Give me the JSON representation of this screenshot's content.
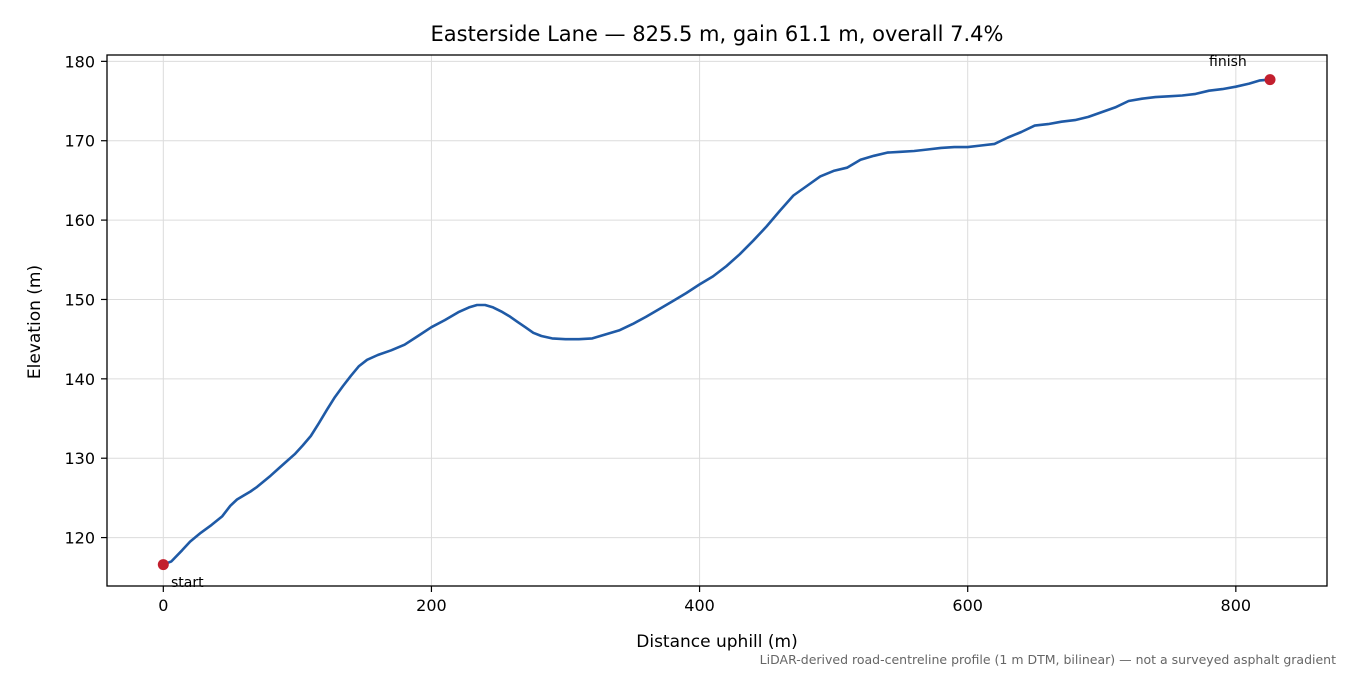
{
  "chart_data": {
    "type": "line",
    "title": "Easterside Lane — 825.5 m, gain 61.1 m, overall 7.4%",
    "xlabel": "Distance uphill (m)",
    "ylabel": "Elevation (m)",
    "xlim": [
      -42,
      868
    ],
    "ylim": [
      113.9,
      180.8
    ],
    "xticks": [
      0,
      200,
      400,
      600,
      800
    ],
    "yticks": [
      120,
      130,
      140,
      150,
      160,
      170,
      180
    ],
    "grid": true,
    "line_color": "#1f5aa6",
    "marker_color": "#c21f2e",
    "series": [
      {
        "x": [
          0,
          6,
          14,
          20,
          28,
          36,
          44,
          50,
          55,
          60,
          65,
          70,
          75,
          80,
          86,
          92,
          98,
          104,
          110,
          116,
          122,
          128,
          134,
          140,
          146,
          152,
          160,
          170,
          180,
          190,
          200,
          210,
          220,
          228,
          234,
          240,
          246,
          252,
          258,
          264,
          270,
          276,
          282,
          290,
          300,
          310,
          320,
          330,
          340,
          350,
          360,
          370,
          380,
          390,
          400,
          410,
          420,
          430,
          440,
          450,
          460,
          470,
          480,
          490,
          500,
          510,
          520,
          530,
          540,
          550,
          560,
          570,
          580,
          590,
          600,
          610,
          620,
          630,
          640,
          650,
          660,
          670,
          680,
          690,
          700,
          710,
          720,
          730,
          740,
          750,
          760,
          770,
          780,
          790,
          800,
          810,
          818,
          825.5
        ],
        "y": [
          116.6,
          117.0,
          118.4,
          119.5,
          120.6,
          121.6,
          122.7,
          124.0,
          124.8,
          125.3,
          125.8,
          126.4,
          127.1,
          127.8,
          128.7,
          129.6,
          130.5,
          131.6,
          132.8,
          134.4,
          136.1,
          137.7,
          139.1,
          140.4,
          141.6,
          142.4,
          143.0,
          143.6,
          144.3,
          145.4,
          146.5,
          147.4,
          148.4,
          149.0,
          149.3,
          149.3,
          149.0,
          148.5,
          147.9,
          147.2,
          146.5,
          145.8,
          145.4,
          145.1,
          145.0,
          145.0,
          145.1,
          145.6,
          146.1,
          146.9,
          147.8,
          148.8,
          149.8,
          150.8,
          151.9,
          152.9,
          154.2,
          155.7,
          157.4,
          159.2,
          161.2,
          163.1,
          164.3,
          165.5,
          166.2,
          166.6,
          167.6,
          168.1,
          168.5,
          168.6,
          168.7,
          168.9,
          169.1,
          169.2,
          169.2,
          169.4,
          169.6,
          170.4,
          171.1,
          171.9,
          172.1,
          172.4,
          172.6,
          173.0,
          173.6,
          174.2,
          175.0,
          175.3,
          175.5,
          175.6,
          175.7,
          175.9,
          176.3,
          176.5,
          176.8,
          177.2,
          177.6,
          177.7
        ]
      }
    ],
    "annotations": [
      {
        "label": "start",
        "x": 0,
        "y": 116.6
      },
      {
        "label": "finish",
        "x": 825.5,
        "y": 177.7
      }
    ],
    "footnote": "LiDAR-derived road-centreline profile (1 m DTM, bilinear) — not a surveyed asphalt gradient"
  }
}
